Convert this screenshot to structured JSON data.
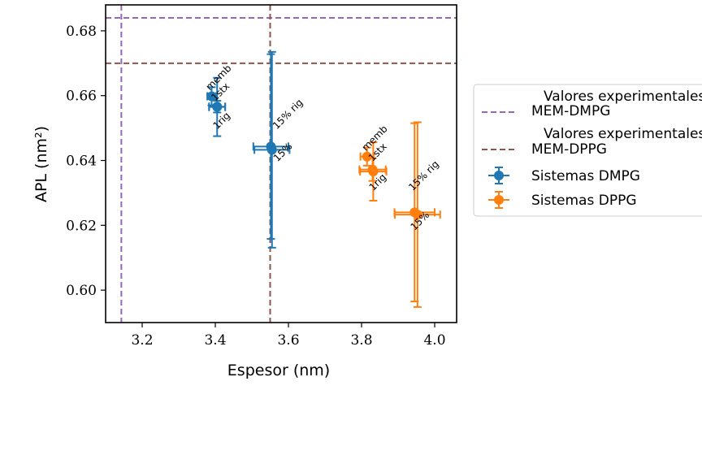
{
  "chart_data": {
    "type": "scatter",
    "title": "",
    "xlabel": "Espesor (nm)",
    "ylabel": "APL (nm²)",
    "xlim": [
      3.1,
      4.06
    ],
    "ylim": [
      0.59,
      0.688
    ],
    "x_ticks": [
      "3.2",
      "3.4",
      "3.6",
      "3.8",
      "4.0"
    ],
    "y_ticks": [
      "0.60",
      "0.62",
      "0.64",
      "0.66",
      "0.68"
    ],
    "x_tick_values": [
      3.2,
      3.4,
      3.6,
      3.8,
      4.0
    ],
    "y_tick_values": [
      0.6,
      0.62,
      0.64,
      0.66,
      0.68
    ],
    "grid": false,
    "legend_position": "outside-right",
    "reference_lines": [
      {
        "label_top": "Valores experimentales",
        "label_bottom": "MEM-DMPG",
        "orientation_values": {
          "x": 3.143,
          "y": 0.684
        },
        "color": "#9467bd"
      },
      {
        "label_top": "Valores experimentales",
        "label_bottom": "MEM-DPPG",
        "orientation_values": {
          "x": 3.55,
          "y": 0.67
        },
        "color": "#8c564b"
      }
    ],
    "series": [
      {
        "name": "Sistemas DMPG",
        "color": "#1f77b4",
        "points": [
          {
            "label": "memb",
            "x": 3.39,
            "y": 0.6598,
            "xerr": 0.012,
            "yerr": 0.0028
          },
          {
            "label": "1stx",
            "x": 3.405,
            "y": 0.6566,
            "xerr": 0.022,
            "yerr": 0.0018
          },
          {
            "label": "1rig",
            "x": 3.405,
            "y": 0.6565,
            "xerr": 0.022,
            "yerr": 0.009
          },
          {
            "label": "15% rig",
            "x": 3.552,
            "y": 0.6443,
            "xerr": 0.048,
            "yerr": 0.0285
          },
          {
            "label": "15%",
            "x": 3.555,
            "y": 0.6433,
            "xerr": 0.048,
            "yerr": 0.0302
          }
        ]
      },
      {
        "name": "Sistemas DPPG",
        "color": "#ff7f0e",
        "points": [
          {
            "label": "memb",
            "x": 3.815,
            "y": 0.6412,
            "xerr": 0.018,
            "yerr": 0.0028
          },
          {
            "label": "1stx",
            "x": 3.83,
            "y": 0.6372,
            "xerr": 0.036,
            "yerr": 0.0035
          },
          {
            "label": "1rig",
            "x": 3.832,
            "y": 0.6366,
            "xerr": 0.036,
            "yerr": 0.009
          },
          {
            "label": "15% rig",
            "x": 3.945,
            "y": 0.624,
            "xerr": 0.055,
            "yerr": 0.0275
          },
          {
            "label": "15%",
            "x": 3.953,
            "y": 0.6233,
            "xerr": 0.062,
            "yerr": 0.0285
          }
        ]
      }
    ],
    "annotations": [
      {
        "text": "memb",
        "x": 3.385,
        "y": 0.6615
      },
      {
        "text": "1stx",
        "x": 3.4,
        "y": 0.6582
      },
      {
        "text": "1rig",
        "x": 3.405,
        "y": 0.6495
      },
      {
        "text": "15% rig",
        "x": 3.568,
        "y": 0.6495
      },
      {
        "text": "15%",
        "x": 3.57,
        "y": 0.6395
      },
      {
        "text": "memb",
        "x": 3.812,
        "y": 0.6428
      },
      {
        "text": "1stx",
        "x": 3.83,
        "y": 0.6396
      },
      {
        "text": "1rig",
        "x": 3.832,
        "y": 0.6305
      },
      {
        "text": "15% rig",
        "x": 3.94,
        "y": 0.6305
      },
      {
        "text": "15%",
        "x": 3.945,
        "y": 0.6183
      }
    ]
  }
}
